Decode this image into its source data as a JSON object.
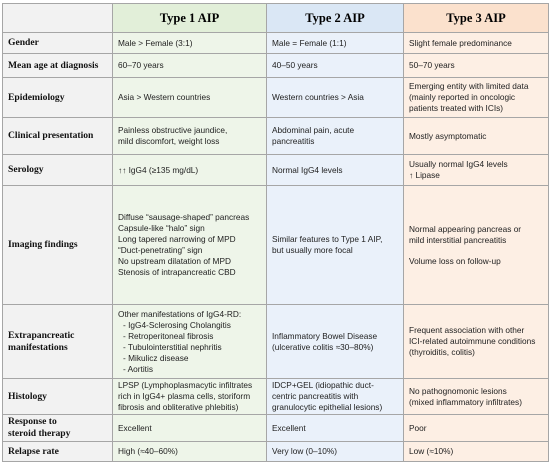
{
  "table": {
    "header": [
      "Type 1 AIP",
      "Type 2 AIP",
      "Type 3 AIP"
    ],
    "rows": [
      [
        "Gender",
        "Male > Female (3:1)",
        "Male = Female (1:1)",
        "Slight female predominance"
      ],
      [
        "Mean age at diagnosis",
        "60–70 years",
        "40–50 years",
        "50–70 years"
      ],
      [
        "Epidemiology",
        "Asia > Western countries",
        "Western countries > Asia",
        [
          "Emerging entity with limited data",
          "(mainly reported in oncologic",
          "patients treated with ICIs)"
        ]
      ],
      [
        "Clinical presentation",
        [
          "Painless obstructive jaundice,",
          "mild discomfort, weight loss"
        ],
        "Abdominal pain, acute pancreatitis",
        "Mostly asymptomatic"
      ],
      [
        "Serology",
        "↑↑ IgG4 (≥135 mg/dL)",
        "Normal IgG4 levels",
        [
          "Usually normal IgG4 levels",
          "↑ Lipase"
        ]
      ],
      [
        "Imaging findings",
        [
          "Diffuse “sausage-shaped” pancreas",
          "Capsule-like “halo” sign",
          "Long tapered narrowing of MPD",
          "“Duct-penetrating” sign",
          "No upstream dilatation of MPD",
          "Stenosis of intrapancreatic CBD"
        ],
        [
          "Similar features to Type 1 AIP,",
          "but usually more focal"
        ],
        [
          "Normal appearing pancreas or",
          "mild interstitial pancreatitis",
          "Volume loss on follow-up"
        ]
      ],
      [
        [
          "Extrapancreatic",
          "manifestations"
        ],
        [
          "Other manifestations of IgG4-RD:",
          "- IgG4-Sclerosing Cholangitis",
          "- Retroperitoneal fibrosis",
          "- Tubulointerstitial nephritis",
          "- Mikulicz disease",
          "- Aortitis"
        ],
        [
          "Inflammatory Bowel Disease",
          "(ulcerative colitis ≈30–80%)"
        ],
        [
          "Frequent association with other",
          "ICI-related autoimmune conditions",
          "(thyroiditis, colitis)"
        ]
      ],
      [
        "Histology",
        [
          "LPSP (Lymphoplasmacytic infiltrates",
          "rich in IgG4+ plasma cells, storiform",
          "fibrosis and obliterative phlebitis)"
        ],
        [
          "IDCP+GEL (idiopathic duct-",
          "centric pancreatitis with",
          "granulocytic epithelial lesions)"
        ],
        [
          "No pathognomonic lesions",
          "(mixed inflammatory infiltrates)"
        ]
      ],
      [
        [
          "Response to",
          "steroid therapy"
        ],
        "Excellent",
        "Excellent",
        "Poor"
      ],
      [
        "Relapse rate",
        "High (≈40–60%)",
        "Very low (0–10%)",
        "Low (≈10%)"
      ]
    ]
  }
}
